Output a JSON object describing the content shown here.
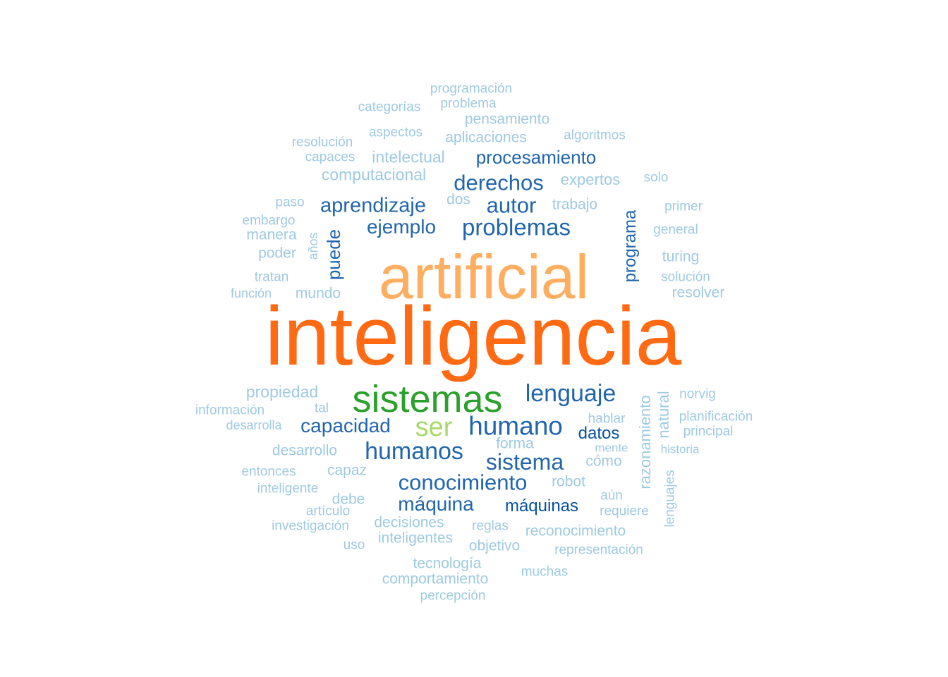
{
  "colors": {
    "c1": "#9ecae1",
    "c2": "#2166ac",
    "c3": "#08519c",
    "orange_dark": "#ff6a13",
    "orange_light": "#fdae61",
    "green_dark": "#2ca02c",
    "green_light": "#a6d96a"
  },
  "words": [
    {
      "text": "inteligencia",
      "color": "orange_dark"
    },
    {
      "text": "artificial",
      "color": "orange_light"
    },
    {
      "text": "sistemas",
      "color": "green_dark"
    },
    {
      "text": "ser",
      "color": "green_light"
    },
    {
      "text": "humano",
      "color": "c2"
    },
    {
      "text": "lenguaje",
      "color": "c2"
    },
    {
      "text": "humanos",
      "color": "c2"
    },
    {
      "text": "sistema",
      "color": "c2"
    },
    {
      "text": "conocimiento",
      "color": "c2"
    },
    {
      "text": "capacidad",
      "color": "c2"
    },
    {
      "text": "máquina",
      "color": "c2"
    },
    {
      "text": "máquinas",
      "color": "c3"
    },
    {
      "text": "datos",
      "color": "c3"
    },
    {
      "text": "problemas",
      "color": "c2"
    },
    {
      "text": "derechos",
      "color": "c2"
    },
    {
      "text": "autor",
      "color": "c2"
    },
    {
      "text": "aprendizaje",
      "color": "c2"
    },
    {
      "text": "ejemplo",
      "color": "c2"
    },
    {
      "text": "procesamiento",
      "color": "c2"
    },
    {
      "text": "puede",
      "color": "c2",
      "vertical": true
    },
    {
      "text": "programa",
      "color": "c2",
      "vertical": true
    },
    {
      "text": "razonamiento",
      "color": "c1",
      "vertical": true
    },
    {
      "text": "natural",
      "color": "c1",
      "vertical": true
    },
    {
      "text": "lenguajes",
      "color": "c1",
      "vertical": true
    },
    {
      "text": "años",
      "color": "c1",
      "vertical": true
    },
    {
      "text": "programación",
      "color": "c1"
    },
    {
      "text": "problema",
      "color": "c1"
    },
    {
      "text": "categorías",
      "color": "c1"
    },
    {
      "text": "pensamiento",
      "color": "c1"
    },
    {
      "text": "aspectos",
      "color": "c1"
    },
    {
      "text": "aplicaciones",
      "color": "c1"
    },
    {
      "text": "algoritmos",
      "color": "c1"
    },
    {
      "text": "resolución",
      "color": "c1"
    },
    {
      "text": "capaces",
      "color": "c1"
    },
    {
      "text": "intelectual",
      "color": "c1"
    },
    {
      "text": "computacional",
      "color": "c1"
    },
    {
      "text": "expertos",
      "color": "c1"
    },
    {
      "text": "solo",
      "color": "c1"
    },
    {
      "text": "paso",
      "color": "c1"
    },
    {
      "text": "dos",
      "color": "c1"
    },
    {
      "text": "trabajo",
      "color": "c1"
    },
    {
      "text": "primer",
      "color": "c1"
    },
    {
      "text": "embargo",
      "color": "c1"
    },
    {
      "text": "manera",
      "color": "c1"
    },
    {
      "text": "general",
      "color": "c1"
    },
    {
      "text": "poder",
      "color": "c1"
    },
    {
      "text": "turing",
      "color": "c1"
    },
    {
      "text": "tratan",
      "color": "c1"
    },
    {
      "text": "solución",
      "color": "c1"
    },
    {
      "text": "función",
      "color": "c1"
    },
    {
      "text": "mundo",
      "color": "c1"
    },
    {
      "text": "resolver",
      "color": "c1"
    },
    {
      "text": "propiedad",
      "color": "c1"
    },
    {
      "text": "norvig",
      "color": "c1"
    },
    {
      "text": "información",
      "color": "c1"
    },
    {
      "text": "tal",
      "color": "c1"
    },
    {
      "text": "hablar",
      "color": "c1"
    },
    {
      "text": "planificación",
      "color": "c1"
    },
    {
      "text": "desarrolla",
      "color": "c1"
    },
    {
      "text": "principal",
      "color": "c1"
    },
    {
      "text": "forma",
      "color": "c1"
    },
    {
      "text": "desarrollo",
      "color": "c1"
    },
    {
      "text": "mente",
      "color": "c1"
    },
    {
      "text": "historia",
      "color": "c1"
    },
    {
      "text": "capaz",
      "color": "c1"
    },
    {
      "text": "cómo",
      "color": "c1"
    },
    {
      "text": "entonces",
      "color": "c1"
    },
    {
      "text": "robot",
      "color": "c1"
    },
    {
      "text": "inteligente",
      "color": "c1"
    },
    {
      "text": "debe",
      "color": "c1"
    },
    {
      "text": "aún",
      "color": "c1"
    },
    {
      "text": "artículo",
      "color": "c1"
    },
    {
      "text": "requiere",
      "color": "c1"
    },
    {
      "text": "investigación",
      "color": "c1"
    },
    {
      "text": "decisiones",
      "color": "c1"
    },
    {
      "text": "reglas",
      "color": "c1"
    },
    {
      "text": "reconocimiento",
      "color": "c1"
    },
    {
      "text": "uso",
      "color": "c1"
    },
    {
      "text": "inteligentes",
      "color": "c1"
    },
    {
      "text": "objetivo",
      "color": "c1"
    },
    {
      "text": "representación",
      "color": "c1"
    },
    {
      "text": "tecnología",
      "color": "c1"
    },
    {
      "text": "muchas",
      "color": "c1"
    },
    {
      "text": "comportamiento",
      "color": "c1"
    },
    {
      "text": "percepción",
      "color": "c1"
    }
  ]
}
